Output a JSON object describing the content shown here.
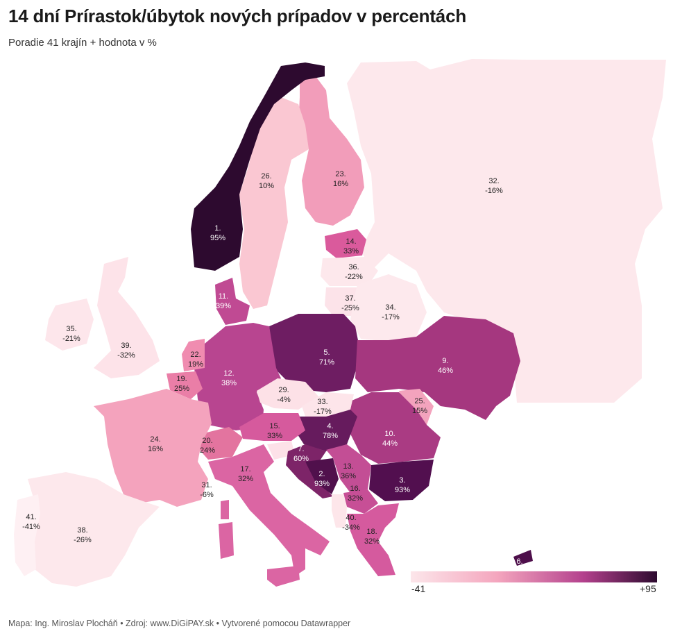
{
  "title": "14 dní Prírastok/úbytok nových prípadov v percentách",
  "subtitle": "Poradie 41 krajín + hodnota v %",
  "footer": "Mapa: Ing. Miroslav Plocháň • Zdroj: www.DiGiPAY.sk • Vytvorené pomocou Datawrapper",
  "legend": {
    "min": "-41",
    "max": "+95",
    "colors": [
      "#fce6ea",
      "#f4a6be",
      "#b4418d",
      "#2d0a2f"
    ]
  },
  "regions": [
    {
      "id": "norway",
      "rank": "1.",
      "value": "95%"
    },
    {
      "id": "bosnia",
      "rank": "2.",
      "value": "93%"
    },
    {
      "id": "bulgaria",
      "rank": "3.",
      "value": "93%"
    },
    {
      "id": "hungary",
      "rank": "4.",
      "value": "78%"
    },
    {
      "id": "poland",
      "rank": "5.",
      "value": "71%"
    },
    {
      "id": "cyprus",
      "rank": "6.",
      "value": ""
    },
    {
      "id": "croatia",
      "rank": "7.",
      "value": "60%"
    },
    {
      "id": "ukraine",
      "rank": "9.",
      "value": "46%"
    },
    {
      "id": "romania",
      "rank": "10.",
      "value": "44%"
    },
    {
      "id": "denmark",
      "rank": "11.",
      "value": "39%"
    },
    {
      "id": "germany",
      "rank": "12.",
      "value": "38%"
    },
    {
      "id": "serbia",
      "rank": "13.",
      "value": "36%"
    },
    {
      "id": "estonia",
      "rank": "14.",
      "value": "33%"
    },
    {
      "id": "austria",
      "rank": "15.",
      "value": "33%"
    },
    {
      "id": "macedonia",
      "rank": "16.",
      "value": "32%"
    },
    {
      "id": "italy",
      "rank": "17.",
      "value": "32%"
    },
    {
      "id": "greece",
      "rank": "18.",
      "value": "32%"
    },
    {
      "id": "belgium",
      "rank": "19.",
      "value": "25%"
    },
    {
      "id": "switzerland",
      "rank": "20.",
      "value": "24%"
    },
    {
      "id": "netherlands",
      "rank": "22.",
      "value": "19%"
    },
    {
      "id": "finland",
      "rank": "23.",
      "value": "16%"
    },
    {
      "id": "france",
      "rank": "24.",
      "value": "16%"
    },
    {
      "id": "moldova",
      "rank": "25.",
      "value": "15%"
    },
    {
      "id": "sweden",
      "rank": "26.",
      "value": "10%"
    },
    {
      "id": "czechia",
      "rank": "29.",
      "value": "-4%"
    },
    {
      "id": "slovenia",
      "rank": "31.",
      "value": "-6%"
    },
    {
      "id": "russia",
      "rank": "32.",
      "value": "-16%"
    },
    {
      "id": "slovakia",
      "rank": "33.",
      "value": "-17%"
    },
    {
      "id": "belarus",
      "rank": "34.",
      "value": "-17%"
    },
    {
      "id": "ireland",
      "rank": "35.",
      "value": "-21%"
    },
    {
      "id": "latvia",
      "rank": "36.",
      "value": "-22%"
    },
    {
      "id": "lithuania",
      "rank": "37.",
      "value": "-25%"
    },
    {
      "id": "spain",
      "rank": "38.",
      "value": "-26%"
    },
    {
      "id": "uk",
      "rank": "39.",
      "value": "-32%"
    },
    {
      "id": "albania",
      "rank": "40.",
      "value": "-34%"
    },
    {
      "id": "portugal",
      "rank": "41.",
      "value": "-41%"
    }
  ]
}
